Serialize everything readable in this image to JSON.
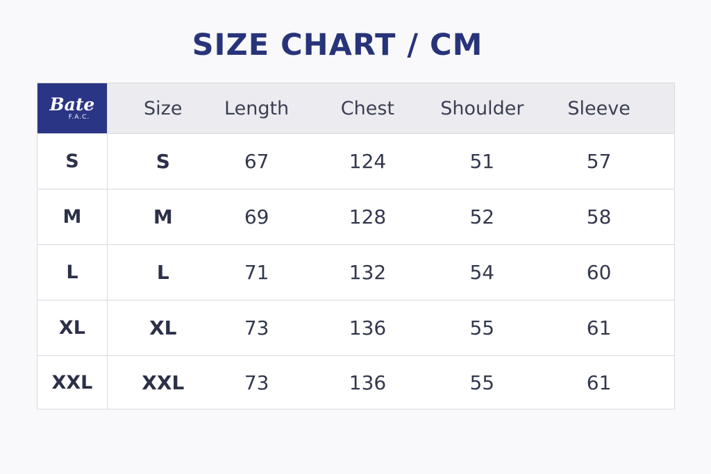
{
  "title": "SIZE CHART / CM",
  "logo": {
    "name": "Bate",
    "sub": "F.A.C."
  },
  "headers": [
    "Size",
    "Length",
    "Chest",
    "Shoulder",
    "Sleeve"
  ],
  "rows": [
    {
      "label": "S",
      "cells": [
        "S",
        "67",
        "124",
        "51",
        "57"
      ]
    },
    {
      "label": "M",
      "cells": [
        "M",
        "69",
        "128",
        "52",
        "58"
      ]
    },
    {
      "label": "L",
      "cells": [
        "L",
        "71",
        "132",
        "54",
        "60"
      ]
    },
    {
      "label": "XL",
      "cells": [
        "XL",
        "73",
        "136",
        "55",
        "61"
      ]
    },
    {
      "label": "XXL",
      "cells": [
        "XXL",
        "73",
        "136",
        "55",
        "61"
      ]
    }
  ],
  "colors": {
    "brand": "#2b3585",
    "title": "#283479"
  }
}
